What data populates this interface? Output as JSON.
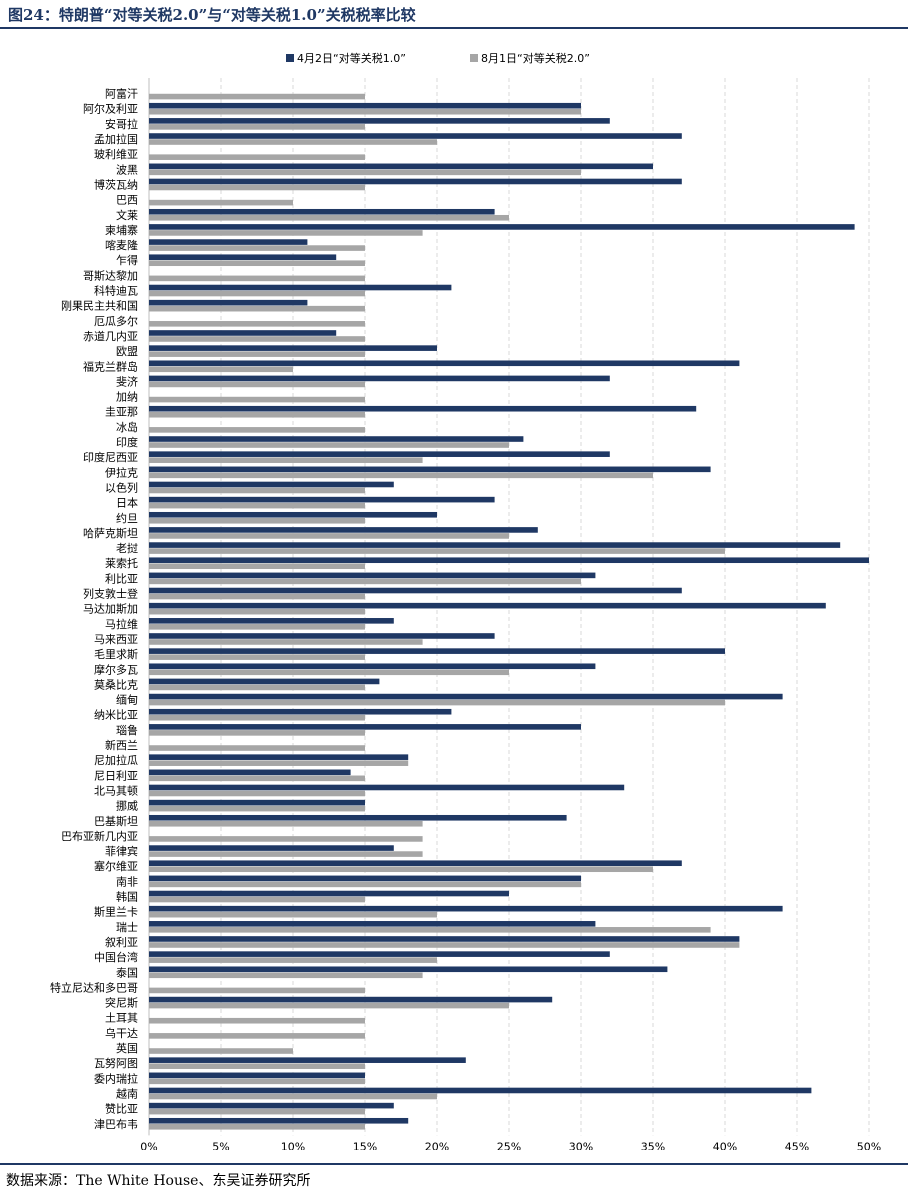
{
  "figure": {
    "title": "图24：特朗普“对等关税2.0”与“对等关税1.0”关税税率比较",
    "source": "数据来源：The White House、东吴证券研究所"
  },
  "colors": {
    "series1": "#1f3864",
    "series2": "#a6a6a6",
    "grid": "#d9d9d9",
    "rule": "#1f3864"
  },
  "chart_data": {
    "type": "bar",
    "orientation": "horizontal",
    "title": "",
    "xlabel": "",
    "ylabel": "",
    "xlim": [
      0,
      50
    ],
    "xticks": [
      0,
      5,
      10,
      15,
      20,
      25,
      30,
      35,
      40,
      45,
      50
    ],
    "tick_format": "percent",
    "grid": "vertical dashed",
    "legend": "top-center",
    "categories": [
      "阿富汗",
      "阿尔及利亚",
      "安哥拉",
      "孟加拉国",
      "玻利维亚",
      "波黑",
      "博茨瓦纳",
      "巴西",
      "文莱",
      "柬埔寨",
      "喀麦隆",
      "乍得",
      "哥斯达黎加",
      "科特迪瓦",
      "刚果民主共和国",
      "厄瓜多尔",
      "赤道几内亚",
      "欧盟",
      "福克兰群岛",
      "斐济",
      "加纳",
      "圭亚那",
      "冰岛",
      "印度",
      "印度尼西亚",
      "伊拉克",
      "以色列",
      "日本",
      "约旦",
      "哈萨克斯坦",
      "老挝",
      "莱索托",
      "利比亚",
      "列支敦士登",
      "马达加斯加",
      "马拉维",
      "马来西亚",
      "毛里求斯",
      "摩尔多瓦",
      "莫桑比克",
      "缅甸",
      "纳米比亚",
      "瑙鲁",
      "新西兰",
      "尼加拉瓜",
      "尼日利亚",
      "北马其顿",
      "挪威",
      "巴基斯坦",
      "巴布亚新几内亚",
      "菲律宾",
      "塞尔维亚",
      "南非",
      "韩国",
      "斯里兰卡",
      "瑞士",
      "叙利亚",
      "中国台湾",
      "泰国",
      "特立尼达和多巴哥",
      "突尼斯",
      "土耳其",
      "乌干达",
      "英国",
      "瓦努阿图",
      "委内瑞拉",
      "越南",
      "赞比亚",
      "津巴布韦"
    ],
    "series": [
      {
        "name": "4月2日“对等关税1.0”",
        "values": [
          null,
          30,
          32,
          37,
          null,
          35,
          37,
          null,
          24,
          49,
          11,
          13,
          null,
          21,
          11,
          null,
          13,
          20,
          41,
          32,
          null,
          38,
          null,
          26,
          32,
          39,
          17,
          24,
          20,
          27,
          48,
          50,
          31,
          37,
          47,
          17,
          24,
          40,
          31,
          16,
          44,
          21,
          30,
          null,
          18,
          14,
          33,
          15,
          29,
          null,
          17,
          37,
          30,
          25,
          44,
          31,
          41,
          32,
          36,
          null,
          28,
          null,
          null,
          null,
          22,
          15,
          46,
          17,
          18
        ]
      },
      {
        "name": "8月1日“对等关税2.0”",
        "values": [
          15,
          30,
          15,
          20,
          15,
          30,
          15,
          10,
          25,
          19,
          15,
          15,
          15,
          15,
          15,
          15,
          15,
          15,
          10,
          15,
          15,
          15,
          15,
          25,
          19,
          35,
          15,
          15,
          15,
          25,
          40,
          15,
          30,
          15,
          15,
          15,
          19,
          15,
          25,
          15,
          40,
          15,
          15,
          15,
          18,
          15,
          15,
          15,
          19,
          19,
          19,
          35,
          30,
          15,
          20,
          39,
          41,
          20,
          19,
          15,
          25,
          15,
          15,
          10,
          15,
          15,
          20,
          15,
          15
        ]
      }
    ]
  }
}
